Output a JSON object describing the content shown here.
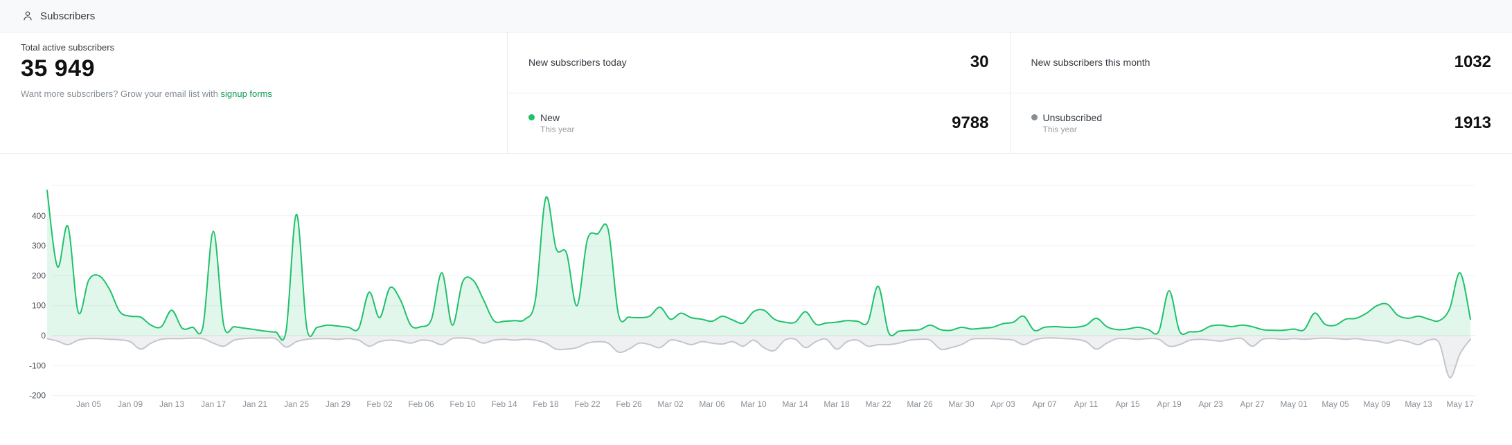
{
  "header": {
    "title": "Subscribers"
  },
  "stats": {
    "total": {
      "label": "Total active subscribers",
      "value": "35 949",
      "hint_prefix": "Want more subscribers? Grow your email list with ",
      "hint_link": "signup forms"
    },
    "today": {
      "label": "New subscribers today",
      "value": "30"
    },
    "month": {
      "label": "New subscribers this month",
      "value": "1032"
    },
    "new_year": {
      "label": "New",
      "sublabel": "This year",
      "value": "9788",
      "dot_color": "#1fc16b"
    },
    "unsub_year": {
      "label": "Unsubscribed",
      "sublabel": "This year",
      "value": "1913",
      "dot_color": "#868e96"
    }
  },
  "chart_data": {
    "type": "area",
    "title": "",
    "xlabel": "",
    "ylabel": "",
    "x_start": "Jan 01",
    "x_end": "May 18",
    "x_tick_labels": [
      "Jan 05",
      "Jan 09",
      "Jan 13",
      "Jan 17",
      "Jan 21",
      "Jan 25",
      "Jan 29",
      "Feb 02",
      "Feb 06",
      "Feb 10",
      "Feb 14",
      "Feb 18",
      "Feb 22",
      "Feb 26",
      "Mar 02",
      "Mar 06",
      "Mar 10",
      "Mar 14",
      "Mar 18",
      "Mar 22",
      "Mar 26",
      "Mar 30",
      "Apr 03",
      "Apr 07",
      "Apr 11",
      "Apr 15",
      "Apr 19",
      "Apr 23",
      "Apr 27",
      "May 01",
      "May 05",
      "May 09",
      "May 13",
      "May 17"
    ],
    "first_tick_day_index": 4,
    "tick_every_days": 4,
    "ylim": [
      -200,
      500
    ],
    "y_tick_values": [
      400,
      300,
      200,
      100,
      0,
      -100,
      -200
    ],
    "gridline_values": [
      500,
      400,
      300,
      200,
      100,
      0,
      -100,
      -200
    ],
    "grid": true,
    "legend_position": "stats-band",
    "series": [
      {
        "name": "New",
        "color": "#1fc16b",
        "fill": "rgba(31,193,107,0.13)",
        "values": [
          485,
          230,
          365,
          78,
          185,
          200,
          155,
          80,
          65,
          62,
          35,
          30,
          85,
          25,
          28,
          30,
          348,
          35,
          30,
          25,
          20,
          15,
          12,
          15,
          405,
          25,
          28,
          35,
          32,
          28,
          25,
          145,
          60,
          160,
          120,
          35,
          30,
          55,
          210,
          35,
          180,
          185,
          120,
          50,
          48,
          50,
          55,
          120,
          460,
          290,
          275,
          100,
          320,
          340,
          355,
          70,
          62,
          60,
          65,
          95,
          55,
          75,
          60,
          55,
          48,
          65,
          52,
          42,
          80,
          85,
          55,
          45,
          45,
          80,
          38,
          42,
          45,
          50,
          48,
          45,
          165,
          10,
          15,
          18,
          20,
          35,
          20,
          18,
          28,
          22,
          25,
          28,
          40,
          45,
          65,
          18,
          28,
          30,
          28,
          28,
          35,
          58,
          30,
          20,
          22,
          28,
          20,
          14,
          150,
          15,
          13,
          15,
          32,
          35,
          30,
          35,
          30,
          20,
          18,
          18,
          22,
          20,
          75,
          38,
          35,
          55,
          58,
          75,
          100,
          105,
          68,
          58,
          65,
          55,
          50,
          90,
          210,
          55
        ]
      },
      {
        "name": "Unsubscribed",
        "color": "#c3c6cb",
        "fill": "rgba(134,142,150,0.13)",
        "values": [
          -10,
          -18,
          -30,
          -15,
          -10,
          -10,
          -12,
          -14,
          -20,
          -45,
          -25,
          -12,
          -10,
          -10,
          -8,
          -10,
          -25,
          -35,
          -15,
          -10,
          -8,
          -8,
          -10,
          -38,
          -20,
          -12,
          -10,
          -10,
          -12,
          -10,
          -15,
          -35,
          -20,
          -15,
          -18,
          -25,
          -15,
          -18,
          -30,
          -10,
          -8,
          -12,
          -25,
          -15,
          -12,
          -15,
          -12,
          -15,
          -25,
          -45,
          -45,
          -40,
          -25,
          -20,
          -25,
          -55,
          -45,
          -25,
          -30,
          -40,
          -15,
          -20,
          -30,
          -20,
          -25,
          -28,
          -20,
          -35,
          -15,
          -40,
          -50,
          -15,
          -12,
          -40,
          -20,
          -12,
          -45,
          -20,
          -15,
          -35,
          -30,
          -30,
          -25,
          -15,
          -12,
          -15,
          -45,
          -40,
          -30,
          -12,
          -10,
          -10,
          -12,
          -15,
          -30,
          -15,
          -8,
          -8,
          -10,
          -12,
          -20,
          -45,
          -25,
          -10,
          -10,
          -12,
          -10,
          -12,
          -35,
          -30,
          -15,
          -12,
          -15,
          -18,
          -12,
          -10,
          -35,
          -12,
          -10,
          -12,
          -10,
          -12,
          -10,
          -8,
          -10,
          -12,
          -10,
          -15,
          -18,
          -25,
          -15,
          -20,
          -30,
          -15,
          -25,
          -140,
          -60,
          -12
        ]
      }
    ]
  }
}
